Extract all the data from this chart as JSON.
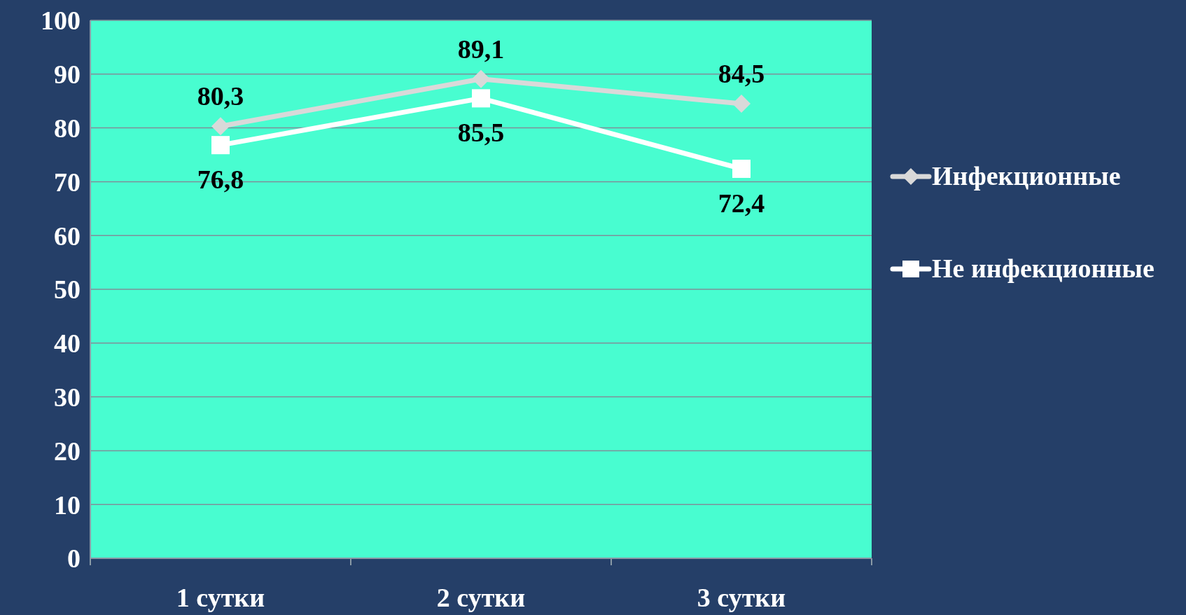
{
  "chart_data": {
    "type": "line",
    "categories": [
      "1 сутки",
      "2 сутки",
      "3 сутки"
    ],
    "series": [
      {
        "name": "Инфекционные",
        "color": "#d9d9d9",
        "marker": "diamond",
        "values": [
          80.3,
          89.1,
          84.5
        ],
        "value_labels": [
          "80,3",
          "89,1",
          "84,5"
        ]
      },
      {
        "name": "Не инфекционные",
        "color": "#ffffff",
        "marker": "square",
        "values": [
          76.8,
          85.5,
          72.4
        ],
        "value_labels": [
          "76,8",
          "85,5",
          "72,4"
        ]
      }
    ],
    "ylim": [
      0,
      100
    ],
    "yticks": [
      0,
      10,
      20,
      30,
      40,
      50,
      60,
      70,
      80,
      90,
      100
    ],
    "grid": "y",
    "legend": "right"
  }
}
